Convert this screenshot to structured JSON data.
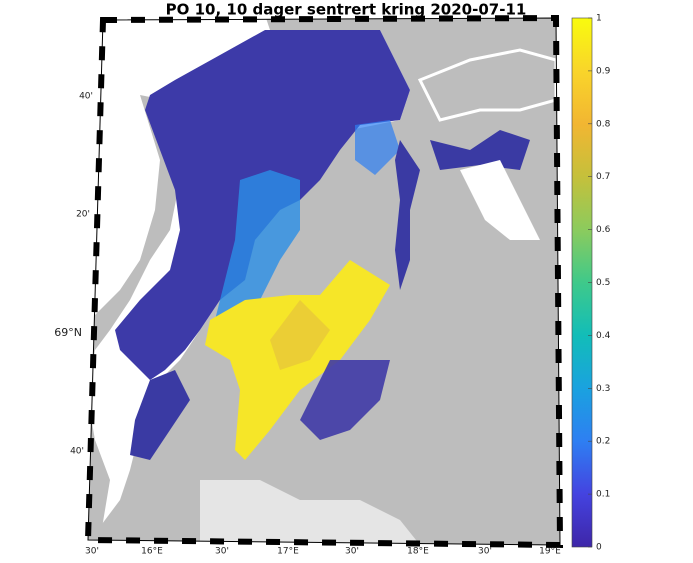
{
  "title": "PO 10, 10 dager sentrert kring 2020-07-11",
  "map": {
    "lon_labels": [
      "30'",
      "16°E",
      "30'",
      "17°E",
      "30'",
      "18°E",
      "30'",
      "19°E"
    ],
    "lat_labels": [
      "40'",
      "20'",
      "69°N",
      "40'"
    ]
  },
  "colorbar": {
    "lim": [
      0,
      1
    ],
    "ticks": [
      0,
      0.1,
      0.2,
      0.3,
      0.4,
      0.5,
      0.6,
      0.7,
      0.8,
      0.9,
      1
    ]
  }
}
